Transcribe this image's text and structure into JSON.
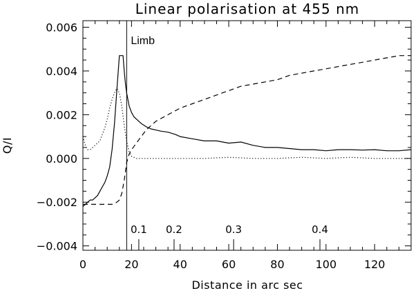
{
  "chart_data": {
    "type": "line",
    "title": "Linear polarisation at 455 nm",
    "xlabel": "Distance in arc sec",
    "ylabel": "Q/I",
    "xlim": [
      0,
      135
    ],
    "ylim": [
      -0.0042,
      0.0063
    ],
    "x_ticks": [
      {
        "v": 0,
        "label": "0"
      },
      {
        "v": 20,
        "label": "20"
      },
      {
        "v": 40,
        "label": "40"
      },
      {
        "v": 60,
        "label": "60"
      },
      {
        "v": 80,
        "label": "80"
      },
      {
        "v": 100,
        "label": "100"
      },
      {
        "v": 120,
        "label": "120"
      }
    ],
    "y_ticks": [
      {
        "v": -0.004,
        "label": "−0.004"
      },
      {
        "v": -0.002,
        "label": "−0.002"
      },
      {
        "v": 0.0,
        "label": "0.000"
      },
      {
        "v": 0.002,
        "label": "0.002"
      },
      {
        "v": 0.004,
        "label": "0.004"
      },
      {
        "v": 0.006,
        "label": "0.006"
      }
    ],
    "grid": false,
    "limb": {
      "x": 18,
      "label": "Limb"
    },
    "mu_marks": [
      {
        "x": 23,
        "label": "0.1"
      },
      {
        "x": 37.5,
        "label": "0.2"
      },
      {
        "x": 62,
        "label": "0.3"
      },
      {
        "x": 97.5,
        "label": "0.4"
      }
    ],
    "series": [
      {
        "style": "solid",
        "x": [
          0,
          1,
          2,
          3,
          4,
          5,
          6,
          7,
          8,
          9,
          10,
          11,
          12,
          13,
          14,
          15,
          15.5,
          16,
          16.5,
          17,
          17.5,
          18,
          19,
          20,
          21,
          22,
          23,
          24,
          26,
          28,
          30,
          32,
          35,
          38,
          40,
          45,
          50,
          55,
          60,
          65,
          70,
          75,
          80,
          85,
          90,
          95,
          100,
          105,
          110,
          115,
          120,
          125,
          130,
          135
        ],
        "y": [
          -0.0022,
          -0.0021,
          -0.002,
          -0.0019,
          -0.0019,
          -0.0018,
          -0.0017,
          -0.0015,
          -0.0013,
          -0.0011,
          -0.0008,
          -0.0004,
          0.0004,
          0.0016,
          0.0032,
          0.0047,
          0.0047,
          0.0047,
          0.0047,
          0.004,
          0.0034,
          0.003,
          0.0024,
          0.0021,
          0.0019,
          0.0018,
          0.0017,
          0.0016,
          0.00145,
          0.00135,
          0.0013,
          0.00125,
          0.0012,
          0.0011,
          0.001,
          0.0009,
          0.0008,
          0.0008,
          0.0007,
          0.00075,
          0.0006,
          0.0005,
          0.0005,
          0.00045,
          0.0004,
          0.0004,
          0.00035,
          0.0004,
          0.0004,
          0.00038,
          0.0004,
          0.00035,
          0.00035,
          0.0004
        ]
      },
      {
        "style": "dashed",
        "x": [
          0,
          2,
          4,
          6,
          8,
          10,
          12,
          14,
          15,
          16,
          17,
          18,
          19,
          20,
          22,
          24,
          26,
          28,
          30,
          35,
          40,
          45,
          50,
          55,
          60,
          65,
          70,
          75,
          80,
          85,
          90,
          95,
          100,
          105,
          110,
          115,
          120,
          125,
          130,
          135
        ],
        "y": [
          -0.0021,
          -0.0021,
          -0.0021,
          -0.0021,
          -0.0021,
          -0.0021,
          -0.0021,
          -0.002,
          -0.0019,
          -0.0016,
          -0.001,
          -0.0002,
          0.0002,
          0.0004,
          0.0007,
          0.001,
          0.0013,
          0.0015,
          0.0017,
          0.002,
          0.0023,
          0.0025,
          0.0027,
          0.0029,
          0.0031,
          0.0033,
          0.0034,
          0.0035,
          0.0036,
          0.0038,
          0.0039,
          0.004,
          0.0041,
          0.0042,
          0.0043,
          0.0044,
          0.0045,
          0.0046,
          0.0047,
          0.0047
        ]
      },
      {
        "style": "dotted",
        "x": [
          0,
          1,
          2,
          3,
          4,
          5,
          6,
          7,
          8,
          9,
          10,
          11,
          12,
          13,
          14,
          15,
          16,
          17,
          18,
          19,
          20,
          22,
          25,
          30,
          35,
          40,
          50,
          60,
          70,
          80,
          90,
          100,
          110,
          120,
          130,
          135
        ],
        "y": [
          0.001,
          0.0006,
          0.0004,
          0.0004,
          0.0005,
          0.0006,
          0.0007,
          0.0008,
          0.0011,
          0.0014,
          0.0018,
          0.0023,
          0.0027,
          0.003,
          0.0032,
          0.003,
          0.0024,
          0.0015,
          0.0008,
          0.0003,
          0.0001,
          0.0,
          0.0,
          0.0,
          0.0,
          0.0,
          0.0,
          5e-05,
          0.0,
          0.0,
          5e-05,
          0.0,
          5e-05,
          0.0,
          0.0,
          0.0
        ]
      }
    ]
  }
}
